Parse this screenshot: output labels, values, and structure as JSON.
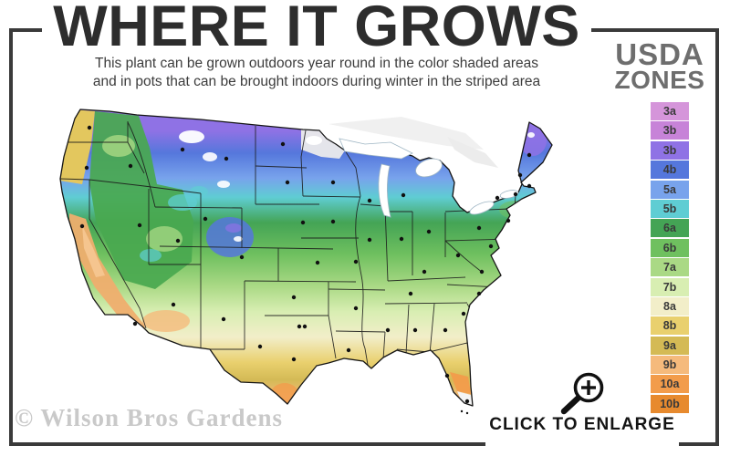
{
  "header": {
    "title": "WHERE IT GROWS",
    "subtitle_line1": "This plant can be grown outdoors year round in the color shaded areas",
    "subtitle_line2": "and in pots that can be brought indoors during winter in the striped area"
  },
  "legend": {
    "title_line1": "USDA",
    "title_line2": "ZONES",
    "zones": [
      {
        "label": "3a",
        "color": "#d595da"
      },
      {
        "label": "3b",
        "color": "#c783d8"
      },
      {
        "label": "3b",
        "color": "#8f72e5"
      },
      {
        "label": "4b",
        "color": "#5577dc"
      },
      {
        "label": "5a",
        "color": "#78a3ec"
      },
      {
        "label": "5b",
        "color": "#5fcdd3"
      },
      {
        "label": "6a",
        "color": "#44a455"
      },
      {
        "label": "6b",
        "color": "#6fc05f"
      },
      {
        "label": "7a",
        "color": "#aad985"
      },
      {
        "label": "7b",
        "color": "#d8eeb2"
      },
      {
        "label": "8a",
        "color": "#f2eec9"
      },
      {
        "label": "8b",
        "color": "#e9d06e"
      },
      {
        "label": "9a",
        "color": "#d4ba55"
      },
      {
        "label": "9b",
        "color": "#f5ba7c"
      },
      {
        "label": "10a",
        "color": "#f29c4b"
      },
      {
        "label": "10b",
        "color": "#e78a2e"
      }
    ]
  },
  "watermark": "© Wilson Bros Gardens",
  "enlarge": {
    "label": "CLICK TO ENLARGE"
  },
  "colors": {
    "frame": "#3a3a3a",
    "title_text": "#2d2d2d",
    "subtitle_text": "#3c3c3c",
    "legend_heading": "#6e6e6e",
    "watermark_text": "#c9c9c9",
    "enlarge_text": "#141414",
    "map_dot": "#111111"
  }
}
